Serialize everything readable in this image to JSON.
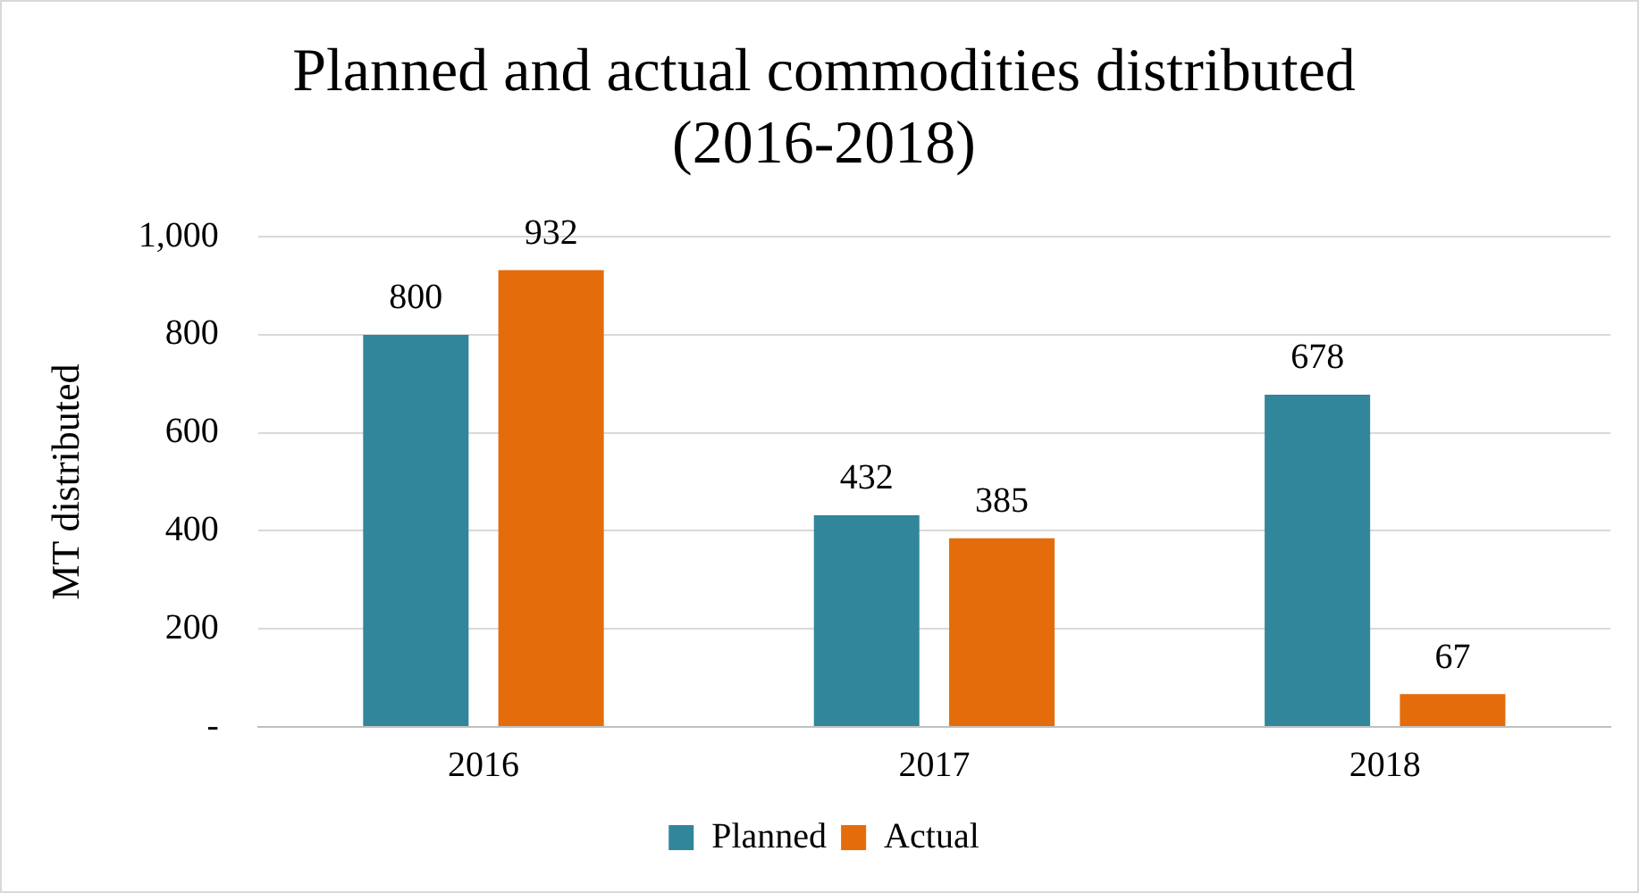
{
  "chart_data": {
    "type": "bar",
    "title": [
      "Planned and actual commodities distributed",
      "(2016-2018)"
    ],
    "ylabel": "MT distributed",
    "categories": [
      "2016",
      "2017",
      "2018"
    ],
    "series": [
      {
        "name": "Planned",
        "color": "#31869b",
        "values": [
          800,
          432,
          678
        ]
      },
      {
        "name": "Actual",
        "color": "#e46c0a",
        "values": [
          932,
          385,
          67
        ]
      }
    ],
    "ylim": [
      0,
      1000
    ],
    "yticks": [
      {
        "value": 0,
        "label": "-"
      },
      200,
      400,
      600,
      800,
      {
        "value": 1000,
        "label": "1,000"
      }
    ],
    "grid": "y",
    "legend": "bottom",
    "data_labels": true
  }
}
